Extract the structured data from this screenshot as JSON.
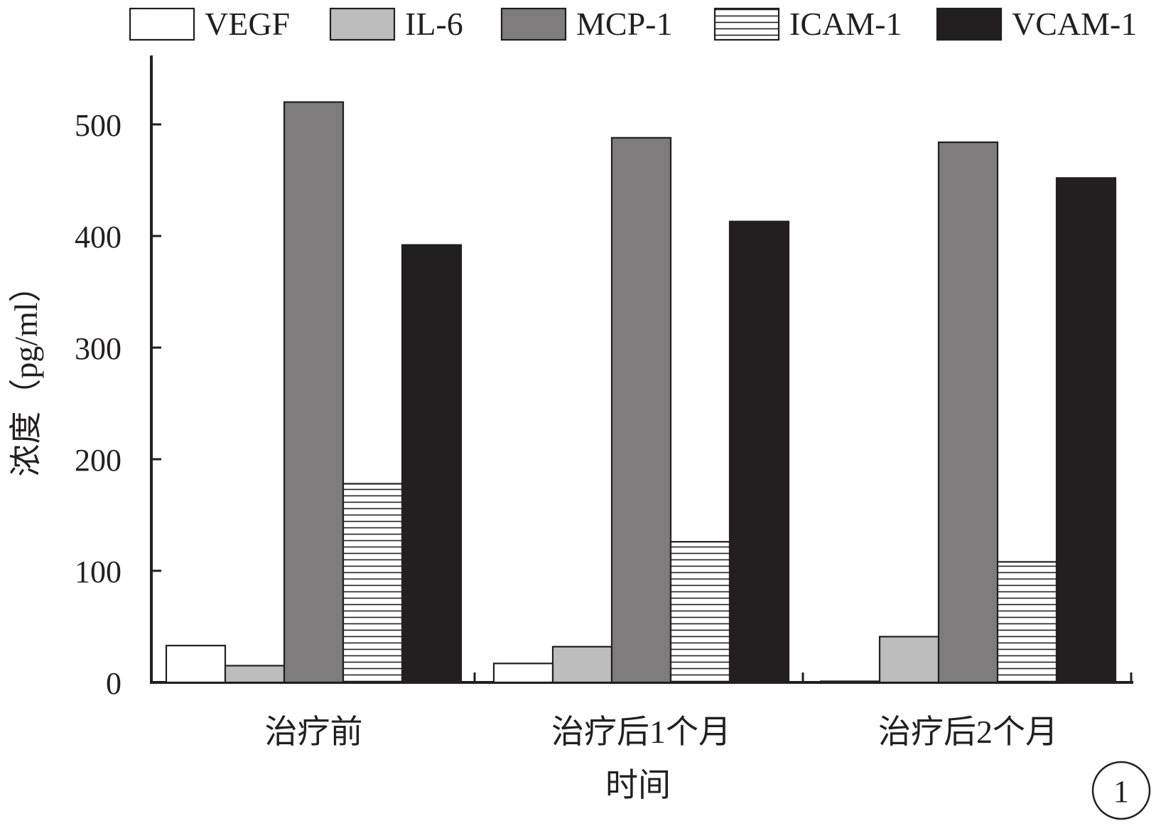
{
  "chart_data": {
    "type": "bar",
    "title": "",
    "xlabel": "时间",
    "ylabel": "浓度（pg/ml）",
    "ylim": [
      0,
      560
    ],
    "yticks": [
      0,
      100,
      200,
      300,
      400,
      500
    ],
    "grid": false,
    "legend_position": "top",
    "categories": [
      "治疗前",
      "治疗后1个月",
      "治疗后2个月"
    ],
    "series": [
      {
        "name": "VEGF",
        "values": [
          33,
          17,
          1
        ],
        "fill": "#ffffff",
        "pattern": "none"
      },
      {
        "name": "IL-6",
        "values": [
          15,
          32,
          41
        ],
        "fill": "#bdbdbd",
        "pattern": "none"
      },
      {
        "name": "MCP-1",
        "values": [
          520,
          488,
          484
        ],
        "fill": "#7e7c7c",
        "pattern": "none"
      },
      {
        "name": "ICAM-1",
        "values": [
          178,
          126,
          108
        ],
        "fill": "#ffffff",
        "pattern": "horizontal-lines"
      },
      {
        "name": "VCAM-1",
        "values": [
          392,
          413,
          452
        ],
        "fill": "#231f20",
        "pattern": "none"
      }
    ]
  },
  "panel_number": "1",
  "colors": {
    "ink": "#231f20",
    "background": "#ffffff"
  }
}
